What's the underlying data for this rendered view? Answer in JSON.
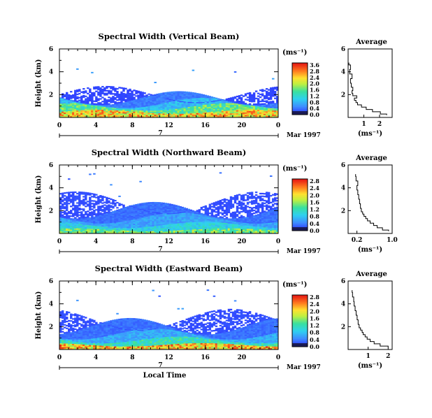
{
  "chart_data": [
    {
      "type": "heatmap",
      "title": "Spectral Width (Vertical Beam)",
      "ylabel": "Height (km)",
      "xlabel": "",
      "xlim": [
        0,
        24
      ],
      "ylim": [
        0,
        6
      ],
      "xticks": [
        "0",
        "4",
        "8",
        "12",
        "16",
        "20",
        "0"
      ],
      "yticks": [
        "2",
        "4",
        "6"
      ],
      "date_axis": {
        "day": "7",
        "label": "Mar 1997"
      },
      "colorbar": {
        "unit": "(ms⁻¹)",
        "ticks": [
          "0.0",
          "0.4",
          "0.8",
          "1.2",
          "1.6",
          "2.0",
          "2.4",
          "2.8"
        ],
        "top_label": "3.6"
      },
      "layers": [
        {
          "top_km": 0.6,
          "value": 2.6
        },
        {
          "top_km": 1.1,
          "value": 1.7
        },
        {
          "top_km": 1.5,
          "value": 0.9
        },
        {
          "top_km": 2.0,
          "value": 0.45
        },
        {
          "top_km": 2.4,
          "value": 0.15
        }
      ],
      "average_profile": {
        "title": "Average",
        "xlabel": "(ms⁻¹)",
        "xlim": [
          0,
          2.8
        ],
        "ylim": [
          0,
          6
        ],
        "xticks": [
          "1",
          "2"
        ],
        "yticks": [
          "2",
          "4",
          "6"
        ],
        "height_km": [
          0.2,
          0.4,
          0.6,
          0.8,
          1.0,
          1.2,
          1.4,
          1.6,
          1.8,
          2.0,
          2.2,
          2.5,
          2.8,
          3.2,
          3.6,
          4.0,
          4.4,
          4.8
        ],
        "value": [
          2.45,
          2.05,
          1.55,
          1.15,
          0.85,
          0.6,
          0.5,
          0.4,
          0.55,
          0.3,
          0.25,
          0.3,
          0.2,
          0.15,
          0.25,
          0.1,
          0.15,
          0.05
        ]
      }
    },
    {
      "type": "heatmap",
      "title": "Spectral Width (Northward Beam)",
      "ylabel": "Height (km)",
      "xlabel": "",
      "xlim": [
        0,
        24
      ],
      "ylim": [
        0,
        6
      ],
      "xticks": [
        "0",
        "4",
        "8",
        "12",
        "16",
        "20",
        "0"
      ],
      "yticks": [
        "2",
        "4",
        "6"
      ],
      "date_axis": {
        "day": "7",
        "label": "Mar 1997"
      },
      "colorbar": {
        "unit": "(ms⁻¹)",
        "ticks": [
          "0.0",
          "0.4",
          "0.8",
          "1.2",
          "1.6",
          "2.0",
          "2.4"
        ],
        "top_label": "2.8"
      },
      "layers": [
        {
          "top_km": 0.4,
          "value": 1.4
        },
        {
          "top_km": 0.9,
          "value": 0.9
        },
        {
          "top_km": 1.6,
          "value": 0.55
        },
        {
          "top_km": 2.4,
          "value": 0.3
        },
        {
          "top_km": 3.2,
          "value": 0.15
        }
      ],
      "average_profile": {
        "title": "Average",
        "xlabel": "(ms⁻¹)",
        "xlim": [
          0,
          1.0
        ],
        "ylim": [
          0,
          6
        ],
        "xticks": [
          "0.2",
          "1.0"
        ],
        "yticks": [
          "2",
          "4",
          "6"
        ],
        "height_km": [
          0.2,
          0.4,
          0.6,
          0.8,
          1.0,
          1.2,
          1.4,
          1.6,
          1.8,
          2.0,
          2.4,
          2.8,
          3.2,
          3.6,
          4.0,
          4.4,
          4.8,
          5.2
        ],
        "value": [
          0.92,
          0.78,
          0.66,
          0.58,
          0.5,
          0.44,
          0.4,
          0.36,
          0.33,
          0.3,
          0.28,
          0.26,
          0.24,
          0.22,
          0.2,
          0.22,
          0.18,
          0.17
        ]
      }
    },
    {
      "type": "heatmap",
      "title": "Spectral Width (Eastward Beam)",
      "ylabel": "Height (km)",
      "xlabel": "Local Time",
      "xlim": [
        0,
        24
      ],
      "ylim": [
        0,
        6
      ],
      "xticks": [
        "0",
        "4",
        "8",
        "12",
        "16",
        "20",
        "0"
      ],
      "yticks": [
        "2",
        "4",
        "6"
      ],
      "date_axis": {
        "day": "7",
        "label": "Mar 1997"
      },
      "colorbar": {
        "unit": "(ms⁻¹)",
        "ticks": [
          "0.0",
          "0.4",
          "0.8",
          "1.2",
          "1.6",
          "2.0",
          "2.4"
        ],
        "top_label": "2.8"
      },
      "layers": [
        {
          "top_km": 0.5,
          "value": 2.1
        },
        {
          "top_km": 1.0,
          "value": 1.1
        },
        {
          "top_km": 1.6,
          "value": 0.6
        },
        {
          "top_km": 2.4,
          "value": 0.3
        },
        {
          "top_km": 3.1,
          "value": 0.15
        }
      ],
      "average_profile": {
        "title": "Average",
        "xlabel": "(ms⁻¹)",
        "xlim": [
          0,
          2.2
        ],
        "ylim": [
          0,
          6
        ],
        "xticks": [
          "1",
          "2"
        ],
        "yticks": [
          "2",
          "4",
          "6"
        ],
        "height_km": [
          0.2,
          0.4,
          0.6,
          0.8,
          1.0,
          1.2,
          1.4,
          1.6,
          1.8,
          2.0,
          2.4,
          2.8,
          3.2,
          3.6,
          4.0,
          4.4,
          4.8,
          5.2
        ],
        "value": [
          2.0,
          1.6,
          1.3,
          1.1,
          0.95,
          0.85,
          0.75,
          0.7,
          0.62,
          0.55,
          0.5,
          0.45,
          0.4,
          0.35,
          0.3,
          0.28,
          0.22,
          0.2
        ]
      }
    }
  ]
}
